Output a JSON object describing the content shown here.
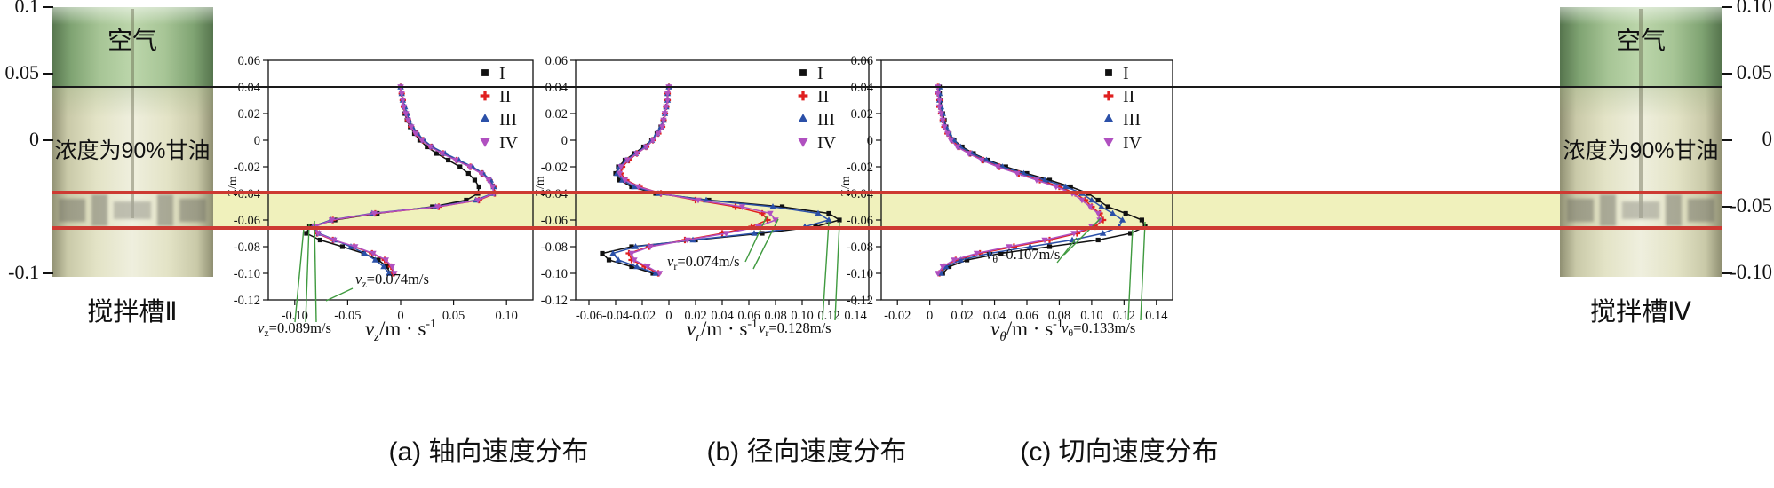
{
  "left_tank": {
    "air_label": "空气",
    "liquid_label": "浓度为90%甘油",
    "caption": "搅拌槽Ⅱ"
  },
  "right_tank": {
    "air_label": "空气",
    "liquid_label": "浓度为90%甘油",
    "caption": "搅拌槽Ⅳ"
  },
  "captions": {
    "a": "(a) 轴向速度分布",
    "b": "(b) 径向速度分布",
    "c": "(c) 切向速度分布"
  },
  "outer_axis": {
    "left_ticks": [
      {
        "z": 0.1,
        "label": "0.1"
      },
      {
        "z": 0.05,
        "label": "0.05"
      },
      {
        "z": 0,
        "label": "0"
      },
      {
        "z": -0.1,
        "label": "-0.1"
      }
    ],
    "right_ticks": [
      {
        "z": 0.1,
        "label": "0.10"
      },
      {
        "z": 0.05,
        "label": "0.05"
      },
      {
        "z": 0,
        "label": "0"
      },
      {
        "z": -0.05,
        "label": "-0.05"
      },
      {
        "z": -0.1,
        "label": "-0.10"
      }
    ]
  },
  "colors": {
    "series": [
      "#111111",
      "#e02020",
      "#2b50a8",
      "#b050c0"
    ],
    "impeller_line": "#cd3a32",
    "impeller_band": "#f0f1bc",
    "leader": "#3f9a3f",
    "surface_line": "#1a1a1a"
  },
  "chart_data": [
    {
      "id": "a",
      "type": "line",
      "title": "(a) 轴向速度分布",
      "ylabel": "Z/m",
      "xlabel": {
        "var": "v",
        "sub": "z",
        "unit": "/m · s",
        "exp": "-1"
      },
      "x_range": [
        -0.125,
        0.125
      ],
      "y_range": [
        -0.12,
        0.06
      ],
      "x_ticks": [
        -0.1,
        -0.05,
        0,
        0.05,
        0.1
      ],
      "x_tick_labels": [
        "-0.10",
        "-0.05",
        "0",
        "0.05",
        "0.10"
      ],
      "y_ticks": [
        0.06,
        0.04,
        0.02,
        0,
        -0.02,
        -0.04,
        -0.06,
        -0.08,
        -0.1,
        -0.12
      ],
      "y_tick_labels": [
        "0.06",
        "0.04",
        "0.02",
        "0",
        "-0.02",
        "-0.04",
        "-0.06",
        "-0.08",
        "-0.10",
        "-0.12"
      ],
      "z": [
        0.04,
        0.035,
        0.03,
        0.025,
        0.02,
        0.015,
        0.01,
        0.005,
        0.0,
        -0.005,
        -0.01,
        -0.015,
        -0.02,
        -0.025,
        -0.03,
        -0.035,
        -0.04,
        -0.045,
        -0.05,
        -0.055,
        -0.06,
        -0.065,
        -0.07,
        -0.075,
        -0.08,
        -0.085,
        -0.09,
        -0.095,
        -0.1
      ],
      "series": [
        {
          "name": "I",
          "marker": "square",
          "color": "#111111",
          "values": [
            0.0,
            0.001,
            0.002,
            0.003,
            0.004,
            0.006,
            0.009,
            0.013,
            0.018,
            0.025,
            0.034,
            0.045,
            0.056,
            0.064,
            0.07,
            0.074,
            0.073,
            0.062,
            0.03,
            -0.022,
            -0.062,
            -0.086,
            -0.089,
            -0.076,
            -0.055,
            -0.035,
            -0.021,
            -0.013,
            -0.01
          ]
        },
        {
          "name": "II",
          "marker": "plus",
          "color": "#e02020",
          "values": [
            0.0,
            0.001,
            0.002,
            0.003,
            0.005,
            0.007,
            0.01,
            0.015,
            0.021,
            0.029,
            0.04,
            0.053,
            0.066,
            0.077,
            0.084,
            0.088,
            0.089,
            0.074,
            0.036,
            -0.024,
            -0.064,
            -0.082,
            -0.079,
            -0.064,
            -0.044,
            -0.027,
            -0.015,
            -0.009,
            -0.007
          ]
        },
        {
          "name": "III",
          "marker": "triangle-up",
          "color": "#2b50a8",
          "values": [
            0.0,
            0.001,
            0.002,
            0.004,
            0.006,
            0.008,
            0.011,
            0.016,
            0.022,
            0.03,
            0.042,
            0.055,
            0.068,
            0.078,
            0.085,
            0.088,
            0.087,
            0.071,
            0.033,
            -0.027,
            -0.066,
            -0.083,
            -0.077,
            -0.062,
            -0.047,
            -0.034,
            -0.024,
            -0.016,
            -0.011
          ]
        },
        {
          "name": "IV",
          "marker": "triangle-down",
          "color": "#b050c0",
          "values": [
            0.0,
            0.001,
            0.002,
            0.003,
            0.005,
            0.007,
            0.01,
            0.014,
            0.02,
            0.028,
            0.039,
            0.052,
            0.065,
            0.076,
            0.083,
            0.087,
            0.088,
            0.073,
            0.035,
            -0.025,
            -0.065,
            -0.081,
            -0.078,
            -0.063,
            -0.043,
            -0.026,
            -0.014,
            -0.008,
            -0.006
          ]
        }
      ],
      "annotations": [
        {
          "var": "v",
          "sub": "z",
          "text": "=0.074m/s"
        },
        {
          "var": "v",
          "sub": "z",
          "text": "=0.089m/s"
        }
      ]
    },
    {
      "id": "b",
      "type": "line",
      "title": "(b) 径向速度分布",
      "ylabel": "Z/m",
      "xlabel": {
        "var": "v",
        "sub": "r",
        "unit": "/m · s",
        "exp": "-1"
      },
      "x_range": [
        -0.07,
        0.15
      ],
      "y_range": [
        -0.12,
        0.06
      ],
      "x_ticks": [
        -0.06,
        -0.04,
        -0.02,
        0,
        0.02,
        0.04,
        0.06,
        0.08,
        0.1,
        0.12,
        0.14
      ],
      "x_tick_labels": [
        "-0.06",
        "-0.04",
        "-0.02",
        "0",
        "0.02",
        "0.04",
        "0.06",
        "0.08",
        "0.10",
        "0.12",
        "0.14"
      ],
      "y_ticks": [
        0.06,
        0.04,
        0.02,
        0,
        -0.02,
        -0.04,
        -0.06,
        -0.08,
        -0.1,
        -0.12
      ],
      "y_tick_labels": [
        "0.06",
        "0.04",
        "0.02",
        "0",
        "-0.02",
        "-0.04",
        "-0.06",
        "-0.08",
        "-0.10",
        "-0.12"
      ],
      "z": [
        0.04,
        0.035,
        0.03,
        0.025,
        0.02,
        0.015,
        0.01,
        0.005,
        0.0,
        -0.005,
        -0.01,
        -0.015,
        -0.02,
        -0.025,
        -0.03,
        -0.035,
        -0.04,
        -0.045,
        -0.05,
        -0.055,
        -0.06,
        -0.065,
        -0.07,
        -0.075,
        -0.08,
        -0.085,
        -0.09,
        -0.095,
        -0.1
      ],
      "series": [
        {
          "name": "I",
          "marker": "square",
          "color": "#111111",
          "values": [
            0.0,
            -0.001,
            -0.001,
            -0.002,
            -0.003,
            -0.004,
            -0.006,
            -0.009,
            -0.013,
            -0.019,
            -0.026,
            -0.033,
            -0.038,
            -0.04,
            -0.037,
            -0.028,
            -0.01,
            0.03,
            0.085,
            0.12,
            0.128,
            0.11,
            0.07,
            0.02,
            -0.028,
            -0.05,
            -0.045,
            -0.028,
            -0.012
          ]
        },
        {
          "name": "II",
          "marker": "plus",
          "color": "#e02020",
          "values": [
            0.0,
            -0.001,
            -0.001,
            -0.002,
            -0.003,
            -0.004,
            -0.005,
            -0.008,
            -0.012,
            -0.017,
            -0.024,
            -0.03,
            -0.035,
            -0.036,
            -0.032,
            -0.022,
            -0.006,
            0.02,
            0.05,
            0.07,
            0.074,
            0.062,
            0.04,
            0.012,
            -0.015,
            -0.03,
            -0.028,
            -0.018,
            -0.008
          ]
        },
        {
          "name": "III",
          "marker": "triangle-up",
          "color": "#2b50a8",
          "values": [
            0.0,
            -0.001,
            -0.001,
            -0.002,
            -0.003,
            -0.004,
            -0.006,
            -0.009,
            -0.013,
            -0.018,
            -0.025,
            -0.032,
            -0.037,
            -0.039,
            -0.035,
            -0.026,
            -0.008,
            0.028,
            0.078,
            0.112,
            0.12,
            0.102,
            0.064,
            0.018,
            -0.025,
            -0.042,
            -0.038,
            -0.024,
            -0.01
          ]
        },
        {
          "name": "IV",
          "marker": "triangle-down",
          "color": "#b050c0",
          "values": [
            0.0,
            -0.001,
            -0.001,
            -0.002,
            -0.003,
            -0.004,
            -0.005,
            -0.008,
            -0.012,
            -0.017,
            -0.024,
            -0.031,
            -0.036,
            -0.037,
            -0.033,
            -0.023,
            -0.006,
            0.022,
            0.055,
            0.076,
            0.08,
            0.067,
            0.043,
            0.014,
            -0.014,
            -0.028,
            -0.026,
            -0.016,
            -0.007
          ]
        }
      ],
      "annotations": [
        {
          "var": "v",
          "sub": "r",
          "text": "=0.074m/s"
        },
        {
          "var": "v",
          "sub": "r",
          "text": "=0.128m/s"
        }
      ]
    },
    {
      "id": "c",
      "type": "line",
      "title": "(c) 切向速度分布",
      "ylabel": "Z/m",
      "xlabel": {
        "var": "v",
        "sub": "θ",
        "unit": "/m · s",
        "exp": "-1"
      },
      "x_range": [
        -0.03,
        0.15
      ],
      "y_range": [
        -0.12,
        0.06
      ],
      "x_ticks": [
        -0.02,
        0,
        0.02,
        0.04,
        0.06,
        0.08,
        0.1,
        0.12,
        0.14
      ],
      "x_tick_labels": [
        "-0.02",
        "0",
        "0.02",
        "0.04",
        "0.06",
        "0.08",
        "0.10",
        "0.12",
        "0.14"
      ],
      "y_ticks": [
        0.06,
        0.04,
        0.02,
        0,
        -0.02,
        -0.04,
        -0.06,
        -0.08,
        -0.1,
        -0.12
      ],
      "y_tick_labels": [
        "0.06",
        "0.04",
        "0.02",
        "0",
        "-0.02",
        "-0.04",
        "-0.06",
        "-0.08",
        "-0.10",
        "-0.12"
      ],
      "z": [
        0.04,
        0.035,
        0.03,
        0.025,
        0.02,
        0.015,
        0.01,
        0.005,
        0.0,
        -0.005,
        -0.01,
        -0.015,
        -0.02,
        -0.025,
        -0.03,
        -0.035,
        -0.04,
        -0.045,
        -0.05,
        -0.055,
        -0.06,
        -0.065,
        -0.07,
        -0.075,
        -0.08,
        -0.085,
        -0.09,
        -0.095,
        -0.1
      ],
      "series": [
        {
          "name": "I",
          "marker": "square",
          "color": "#111111",
          "values": [
            0.006,
            0.006,
            0.007,
            0.007,
            0.008,
            0.009,
            0.01,
            0.012,
            0.015,
            0.02,
            0.027,
            0.036,
            0.047,
            0.06,
            0.074,
            0.087,
            0.098,
            0.104,
            0.11,
            0.121,
            0.131,
            0.133,
            0.124,
            0.104,
            0.074,
            0.044,
            0.023,
            0.012,
            0.008
          ]
        },
        {
          "name": "II",
          "marker": "plus",
          "color": "#e02020",
          "values": [
            0.005,
            0.005,
            0.006,
            0.006,
            0.007,
            0.008,
            0.009,
            0.011,
            0.014,
            0.018,
            0.025,
            0.033,
            0.043,
            0.055,
            0.068,
            0.08,
            0.09,
            0.096,
            0.1,
            0.105,
            0.107,
            0.102,
            0.091,
            0.074,
            0.052,
            0.031,
            0.016,
            0.009,
            0.006
          ]
        },
        {
          "name": "III",
          "marker": "triangle-up",
          "color": "#2b50a8",
          "values": [
            0.006,
            0.006,
            0.006,
            0.007,
            0.008,
            0.008,
            0.01,
            0.012,
            0.015,
            0.019,
            0.026,
            0.035,
            0.045,
            0.058,
            0.071,
            0.084,
            0.094,
            0.1,
            0.106,
            0.113,
            0.119,
            0.117,
            0.107,
            0.088,
            0.062,
            0.037,
            0.019,
            0.01,
            0.007
          ]
        },
        {
          "name": "IV",
          "marker": "triangle-down",
          "color": "#b050c0",
          "values": [
            0.005,
            0.005,
            0.006,
            0.006,
            0.007,
            0.008,
            0.009,
            0.011,
            0.013,
            0.017,
            0.024,
            0.032,
            0.042,
            0.054,
            0.066,
            0.078,
            0.088,
            0.094,
            0.099,
            0.104,
            0.105,
            0.1,
            0.089,
            0.071,
            0.049,
            0.029,
            0.015,
            0.008,
            0.005
          ]
        }
      ],
      "annotations": [
        {
          "var": "v",
          "sub": "θ",
          "text": "=0.107m/s"
        },
        {
          "var": "v",
          "sub": "θ",
          "text": "=0.133m/s"
        }
      ]
    }
  ]
}
